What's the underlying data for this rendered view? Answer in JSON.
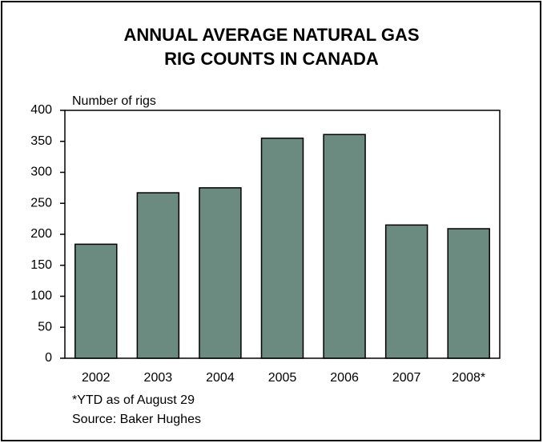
{
  "chart_data": {
    "type": "bar",
    "title": [
      "ANNUAL AVERAGE NATURAL GAS",
      "RIG COUNTS IN CANADA"
    ],
    "y_label": "Number of rigs",
    "categories": [
      "2002",
      "2003",
      "2004",
      "2005",
      "2006",
      "2007",
      "2008*"
    ],
    "values": [
      184,
      267,
      275,
      355,
      361,
      215,
      209
    ],
    "color": "#6b8a80",
    "ylim": [
      0,
      400
    ],
    "yticks": [
      0,
      50,
      100,
      150,
      200,
      250,
      300,
      350,
      400
    ],
    "grid": false,
    "notes": [
      "*YTD as of August 29",
      "Source: Baker Hughes"
    ]
  }
}
